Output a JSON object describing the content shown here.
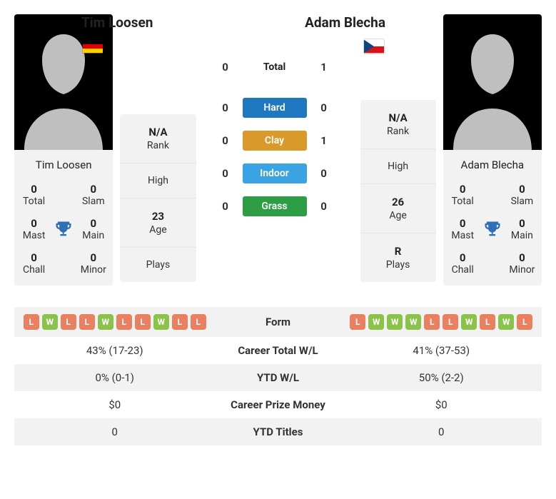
{
  "colors": {
    "win_badge": "#8bc34a",
    "loss_badge": "#e98060",
    "hard": "#1f77c0",
    "clay": "#d99a2b",
    "indoor": "#3aa3e3",
    "grass": "#2e9e44",
    "trophy": "#2f6fb3",
    "row_bg": "#f2f2f2"
  },
  "labels": {
    "total": "Total",
    "hard": "Hard",
    "clay": "Clay",
    "indoor": "Indoor",
    "grass": "Grass",
    "rank": "Rank",
    "high": "High",
    "age": "Age",
    "plays": "Plays",
    "titles_total": "Total",
    "titles_slam": "Slam",
    "titles_mast": "Mast",
    "titles_main": "Main",
    "titles_chall": "Chall",
    "titles_minor": "Minor",
    "form": "Form",
    "career_wl": "Career Total W/L",
    "ytd_wl": "YTD W/L",
    "prize": "Career Prize Money",
    "ytd_titles": "YTD Titles"
  },
  "p1": {
    "name": "Tim Loosen",
    "flag": "de",
    "rank": "N/A",
    "high": "",
    "age": "23",
    "plays": "",
    "titles": {
      "total": "0",
      "slam": "0",
      "mast": "0",
      "main": "0",
      "chall": "0",
      "minor": "0"
    },
    "form": [
      "L",
      "W",
      "L",
      "L",
      "W",
      "L",
      "L",
      "W",
      "L",
      "L"
    ],
    "career_wl": "43% (17-23)",
    "ytd_wl": "0% (0-1)",
    "prize": "$0",
    "ytd_titles": "0"
  },
  "p2": {
    "name": "Adam Blecha",
    "flag": "cz",
    "rank": "N/A",
    "high": "",
    "age": "26",
    "plays": "R",
    "titles": {
      "total": "0",
      "slam": "0",
      "mast": "0",
      "main": "0",
      "chall": "0",
      "minor": "0"
    },
    "form": [
      "L",
      "W",
      "W",
      "W",
      "L",
      "L",
      "W",
      "L",
      "W",
      "L"
    ],
    "career_wl": "41% (37-53)",
    "ytd_wl": "50% (2-2)",
    "prize": "$0",
    "ytd_titles": "0"
  },
  "h2h": {
    "total": {
      "p1": "0",
      "p2": "1"
    },
    "hard": {
      "p1": "0",
      "p2": "0"
    },
    "clay": {
      "p1": "0",
      "p2": "1"
    },
    "indoor": {
      "p1": "0",
      "p2": "0"
    },
    "grass": {
      "p1": "0",
      "p2": "0"
    }
  }
}
